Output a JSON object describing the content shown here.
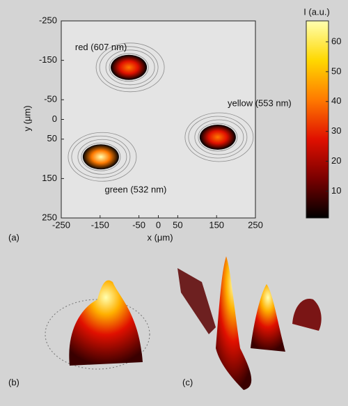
{
  "chart_data": {
    "type": "spot-map",
    "xlabel": "x (μm)",
    "ylabel": "y (μm)",
    "xlim": [
      -250,
      250
    ],
    "ylim": [
      -250,
      250
    ],
    "y_inverted": true,
    "xticks": [
      -250,
      -150,
      -50,
      0,
      50,
      150,
      250
    ],
    "yticks": [
      -250,
      -150,
      -50,
      0,
      50,
      150,
      250
    ],
    "spots": [
      {
        "label": "red (607 nm)",
        "x": -76,
        "y": -132,
        "intensity": 35
      },
      {
        "label": "yellow (553 nm)",
        "x": 153,
        "y": 45,
        "intensity": 45
      },
      {
        "label": "green (532 nm)",
        "x": -148,
        "y": 95,
        "intensity": 62
      }
    ],
    "colorbar": {
      "title": "I (a.u.)",
      "lim": [
        1,
        67
      ],
      "ticks": [
        10,
        20,
        30,
        40,
        50,
        60
      ],
      "colormap": [
        "#000000",
        "#7a0000",
        "#e01000",
        "#ff7a00",
        "#ffd800",
        "#ffffb0"
      ]
    },
    "panel_labels": [
      "(a)",
      "(b)",
      "(c)"
    ]
  }
}
